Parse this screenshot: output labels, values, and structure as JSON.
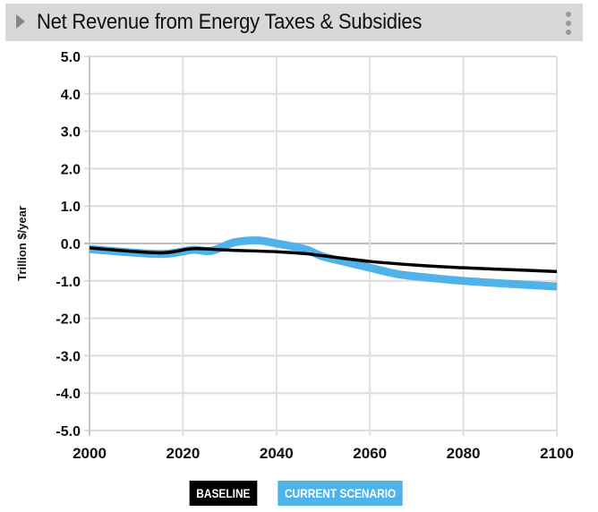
{
  "header": {
    "title": "Net Revenue from Energy Taxes & Subsidies",
    "expand_icon": "triangle-right-icon",
    "menu_icon": "vertical-dots-icon"
  },
  "legend": [
    {
      "label": "BASELINE",
      "color": "#000000"
    },
    {
      "label": "CURRENT SCENARIO",
      "color": "#4fb3ea"
    }
  ],
  "chart_data": {
    "type": "line",
    "title": "Net Revenue from Energy Taxes & Subsidies",
    "xlabel": "",
    "ylabel": "Trillion $/year",
    "xlim": [
      2000,
      2100
    ],
    "ylim": [
      -5.0,
      5.0
    ],
    "xticks": [
      2000,
      2020,
      2040,
      2060,
      2080,
      2100
    ],
    "xtick_labels": [
      "2000",
      "2020",
      "2040",
      "2060",
      "2080",
      "2100"
    ],
    "yticks": [
      5,
      4,
      3,
      2,
      1,
      0,
      -1,
      -2,
      -3,
      -4,
      -5
    ],
    "ytick_labels": [
      "5.0",
      "4.0",
      "3.0",
      "2.0",
      "1.0",
      "0.0",
      "-1.0",
      "-2.0",
      "-3.0",
      "-4.0",
      "-5.0"
    ],
    "grid": true,
    "legend_position": "bottom-center",
    "series": [
      {
        "name": "CURRENT SCENARIO",
        "color": "#4fb3ea",
        "x": [
          2000,
          2015,
          2022,
          2026,
          2031,
          2036,
          2040,
          2046,
          2050,
          2055,
          2060,
          2066,
          2073,
          2080,
          2090,
          2100
        ],
        "values": [
          -0.15,
          -0.28,
          -0.17,
          -0.2,
          0.03,
          0.08,
          0.0,
          -0.15,
          -0.35,
          -0.5,
          -0.65,
          -0.82,
          -0.92,
          -1.0,
          -1.08,
          -1.15
        ]
      },
      {
        "name": "BASELINE",
        "color": "#000000",
        "x": [
          2000,
          2015,
          2022,
          2030,
          2040,
          2046,
          2050,
          2060,
          2070,
          2080,
          2090,
          2100
        ],
        "values": [
          -0.12,
          -0.25,
          -0.14,
          -0.18,
          -0.22,
          -0.27,
          -0.33,
          -0.48,
          -0.58,
          -0.65,
          -0.7,
          -0.75
        ]
      }
    ]
  }
}
